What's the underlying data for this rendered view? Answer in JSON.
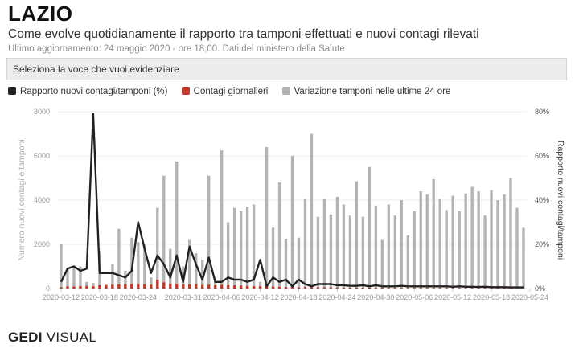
{
  "header": {
    "title": "LAZIO",
    "subtitle": "Come evolve quotidianamente il rapporto tra tamponi effettuati e nuovi contagi rilevati",
    "updated": "Ultimo aggiornamento: 24 maggio 2020 - ore 18,00. Dati del ministero della Salute"
  },
  "selector": {
    "placeholder": "Seleziona la voce che vuoi evidenziare"
  },
  "footer": {
    "brand_bold": "GEDI",
    "brand_light": "VISUAL"
  },
  "colors": {
    "ratio": "#222222",
    "contagi": "#c0392b",
    "tamponi": "#b3b3b3"
  },
  "chart_data": {
    "type": "bar",
    "legend": [
      {
        "name": "Rapporto nuovi contagi/tamponi (%)",
        "color": "#222222"
      },
      {
        "name": "Contagi giornalieri",
        "color": "#c0392b"
      },
      {
        "name": "Variazione tamponi nelle ultime 24 ore",
        "color": "#b3b3b3"
      }
    ],
    "ylabel": "Numero nuovi contagi e tamponi",
    "y2label": "Rapporto nuovi contagi/tamponi",
    "ylim": [
      0,
      8000
    ],
    "y2lim": [
      0,
      80
    ],
    "yticks": [
      "0",
      "2000",
      "4000",
      "6000",
      "8000"
    ],
    "y2ticks": [
      "0%",
      "20%",
      "40%",
      "60%",
      "80%"
    ],
    "xticks": [
      {
        "label": "2020-03-12",
        "i": 0
      },
      {
        "label": "2020-03-18",
        "i": 6
      },
      {
        "label": "2020-03-24",
        "i": 12
      },
      {
        "label": "2020-03-31",
        "i": 19
      },
      {
        "label": "2020-04-06",
        "i": 25
      },
      {
        "label": "2020-04-12",
        "i": 31
      },
      {
        "label": "2020-04-18",
        "i": 37
      },
      {
        "label": "2020-04-24",
        "i": 43
      },
      {
        "label": "2020-04-30",
        "i": 49
      },
      {
        "label": "2020-05-06",
        "i": 55
      },
      {
        "label": "2020-05-12",
        "i": 61
      },
      {
        "label": "2020-05-18",
        "i": 67
      },
      {
        "label": "2020-05-24",
        "i": 73
      }
    ],
    "start_date": "2020-03-12",
    "series": [
      {
        "name": "Variazione tamponi nelle ultime 24 ore",
        "values": [
          2000,
          900,
          950,
          1000,
          300,
          250,
          1700,
          150,
          1100,
          2700,
          800,
          2300,
          2100,
          2000,
          500,
          3650,
          5100,
          1800,
          5750,
          1000,
          2200,
          1600,
          1300,
          5100,
          300,
          6250,
          3000,
          3650,
          3500,
          3700,
          3800,
          300,
          6400,
          2750,
          4800,
          2250,
          6000,
          2300,
          4050,
          7000,
          3250,
          4050,
          3350,
          4150,
          3800,
          3300,
          4850,
          3250,
          5500,
          3750,
          2200,
          3800,
          3300,
          4000,
          2400,
          3500,
          4400,
          4250,
          4950,
          4050,
          3550,
          4200,
          3500,
          4300,
          4600,
          4400,
          3300,
          4450,
          4000,
          4250,
          5000,
          3650,
          2750
        ]
      },
      {
        "name": "Contagi giornalieri",
        "values": [
          60,
          100,
          90,
          110,
          120,
          100,
          150,
          160,
          170,
          180,
          190,
          200,
          210,
          190,
          170,
          400,
          280,
          200,
          220,
          190,
          180,
          200,
          160,
          170,
          150,
          160,
          150,
          140,
          130,
          120,
          110,
          100,
          90,
          90,
          80,
          70,
          90,
          60,
          65,
          60,
          55,
          55,
          50,
          45,
          45,
          40,
          40,
          38,
          36,
          34,
          33,
          32,
          30,
          28,
          26,
          25,
          25,
          24,
          24,
          22,
          22,
          20,
          20,
          18,
          18,
          17,
          17,
          16,
          15,
          15,
          14,
          14,
          13
        ]
      },
      {
        "name": "Rapporto nuovi contagi/tamponi (%)",
        "values": [
          3,
          9,
          10,
          8,
          9,
          79,
          7,
          7,
          7,
          6,
          5,
          8,
          30,
          18,
          7,
          15,
          11,
          5,
          15,
          3,
          19,
          11,
          4,
          14,
          3,
          3,
          5,
          4,
          4,
          3,
          4,
          13,
          1,
          5,
          3,
          4,
          1,
          4,
          2,
          1,
          2,
          2,
          2,
          1.5,
          1.5,
          1.2,
          1.2,
          1.5,
          1,
          1.5,
          1,
          1,
          1,
          1.2,
          1,
          1,
          1,
          1,
          1,
          1,
          1,
          0.8,
          1,
          0.8,
          0.8,
          0.7,
          0.8,
          0.6,
          0.6,
          0.6,
          0.5,
          0.5,
          0.5
        ]
      }
    ]
  }
}
